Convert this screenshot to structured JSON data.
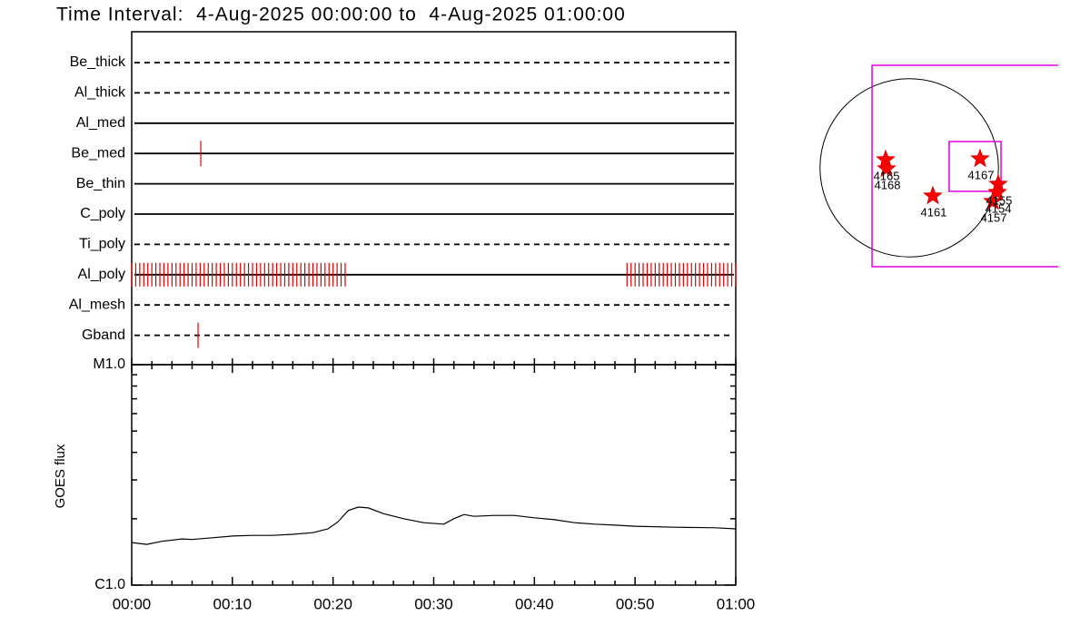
{
  "title": "Time Interval:  4-Aug-2025 00:00:00 to  4-Aug-2025 01:00:00",
  "filters": {
    "xlim": [
      0,
      60
    ],
    "rows": [
      {
        "name": "Be_thick",
        "style": "dashed",
        "events": []
      },
      {
        "name": "Al_thick",
        "style": "dashed",
        "events": []
      },
      {
        "name": "Al_med",
        "style": "solid",
        "events": []
      },
      {
        "name": "Be_med",
        "style": "solid",
        "events": [
          6.86
        ]
      },
      {
        "name": "Be_thin",
        "style": "solid",
        "events": []
      },
      {
        "name": "C_poly",
        "style": "solid",
        "events": []
      },
      {
        "name": "Ti_poly",
        "style": "dashed",
        "events": []
      },
      {
        "name": "Al_poly",
        "style": "solid",
        "color": "#e00000",
        "events": [
          0,
          0.4,
          0.8,
          1.2,
          1.6,
          2,
          2.4,
          2.8,
          3.2,
          3.6,
          4,
          4.4,
          4.8,
          5.2,
          5.6,
          6,
          6.4,
          6.8,
          7.2,
          7.6,
          8,
          8.4,
          8.8,
          9.2,
          9.6,
          10,
          10.4,
          10.8,
          11.2,
          11.6,
          12,
          12.4,
          12.8,
          13.2,
          13.6,
          14,
          14.4,
          14.8,
          15.2,
          15.6,
          16,
          16.4,
          16.8,
          17.2,
          17.6,
          18,
          18.4,
          18.8,
          19.2,
          19.6,
          20,
          20.4,
          20.8,
          21.2,
          49.2,
          49.6,
          50,
          50.4,
          50.8,
          51.2,
          51.6,
          52,
          52.4,
          52.8,
          53.2,
          53.6,
          54,
          54.4,
          54.8,
          55.2,
          55.6,
          56,
          56.4,
          56.8,
          57.2,
          57.6,
          58,
          58.4,
          58.8,
          59.2,
          59.6,
          60
        ]
      },
      {
        "name": "Al_mesh",
        "style": "dashed",
        "events": []
      },
      {
        "name": "Gband",
        "style": "dashed",
        "events": [
          6.59
        ]
      }
    ],
    "event_color": "#e00000"
  },
  "chart_data": {
    "type": "line",
    "ylabel": "GOES flux",
    "log_scale": true,
    "color": "#000000",
    "x": [
      0,
      1.5,
      3,
      5,
      6,
      8,
      10,
      12,
      14,
      16,
      18,
      19.5,
      20.5,
      21.5,
      22.5,
      23.5,
      25,
      27,
      29,
      31,
      32,
      33,
      34,
      36,
      38,
      40,
      42,
      44,
      46,
      48,
      50,
      54,
      58,
      60
    ],
    "values": [
      1.56e-06,
      1.53e-06,
      1.58e-06,
      1.62e-06,
      1.61e-06,
      1.64e-06,
      1.67e-06,
      1.68e-06,
      1.68e-06,
      1.7e-06,
      1.73e-06,
      1.8e-06,
      1.94e-06,
      2.18e-06,
      2.26e-06,
      2.24e-06,
      2.11e-06,
      2e-06,
      1.92e-06,
      1.89e-06,
      2e-06,
      2.09e-06,
      2.05e-06,
      2.07e-06,
      2.07e-06,
      2.02e-06,
      1.98e-06,
      1.92e-06,
      1.89e-06,
      1.87e-06,
      1.85e-06,
      1.83e-06,
      1.82e-06,
      1.8e-06
    ],
    "xlim": [
      0,
      60
    ],
    "xticks": [
      {
        "value": 0,
        "label": "00:00"
      },
      {
        "value": 10,
        "label": "00:10"
      },
      {
        "value": 20,
        "label": "00:20"
      },
      {
        "value": 30,
        "label": "00:30"
      },
      {
        "value": 40,
        "label": "00:40"
      },
      {
        "value": 50,
        "label": "00:50"
      },
      {
        "value": 60,
        "label": "01:00"
      }
    ],
    "xminorticks": [
      2,
      4,
      6,
      8,
      12,
      14,
      16,
      18,
      22,
      24,
      26,
      28,
      32,
      34,
      36,
      38,
      42,
      44,
      46,
      48,
      52,
      54,
      56,
      58
    ],
    "ylim": [
      1e-06,
      1e-05
    ],
    "yticks": [
      {
        "value": 1e-06,
        "label": "C1.0"
      },
      {
        "value": 1e-05,
        "label": "M1.0"
      }
    ],
    "yminorticks": [
      2e-06,
      3e-06,
      4e-06,
      5e-06,
      6e-06,
      7e-06,
      8e-06,
      9e-06
    ]
  },
  "map": {
    "xlim": [
      -1100,
      1700
    ],
    "ylim": [
      -1200,
      1200
    ],
    "disk_radius": 950,
    "fov": [
      {
        "x": [
          -396,
          1900
        ],
        "y": [
          -1054,
          1093
        ]
      },
      {
        "x": [
          425,
          977
        ],
        "y": [
          -251,
          280
        ]
      }
    ],
    "regions": [
      {
        "label": "4165",
        "x": -251,
        "y": 87
      },
      {
        "label": "4168",
        "x": -242,
        "y": -10
      },
      {
        "label": "4167",
        "x": 754,
        "y": 97
      },
      {
        "label": "4161",
        "x": 251,
        "y": -300
      },
      {
        "label": "4155",
        "x": 947,
        "y": -174
      },
      {
        "label": "4154",
        "x": 938,
        "y": -261
      },
      {
        "label": "4157",
        "x": 890,
        "y": -358
      }
    ]
  }
}
